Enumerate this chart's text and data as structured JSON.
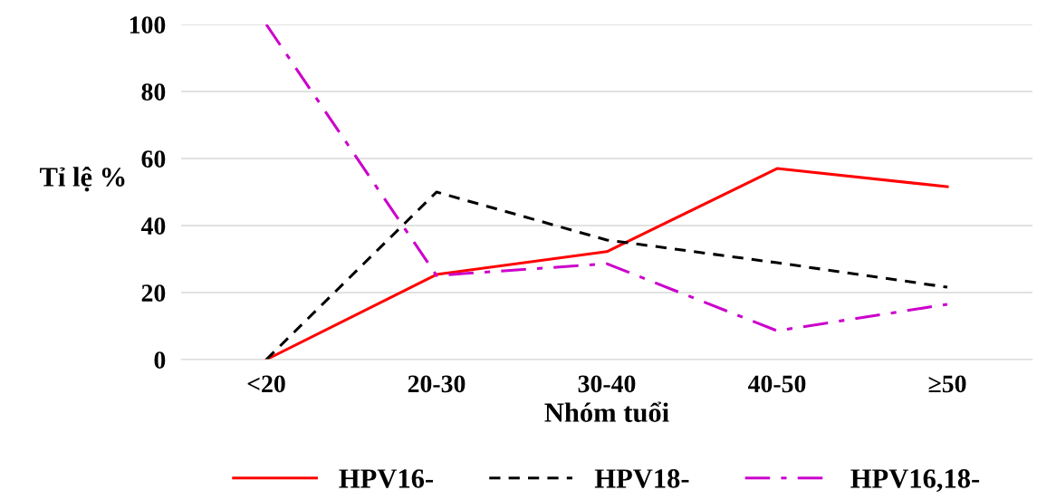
{
  "chart_data": {
    "type": "line",
    "xlabel": "Nhóm tuổi",
    "ylabel": "Tỉ lệ %",
    "categories": [
      "<20",
      "20-30",
      "30-40",
      "40-50",
      "≥50"
    ],
    "series": [
      {
        "name": "HPV16-",
        "color": "#ff0000",
        "line_style": "solid",
        "values": [
          0,
          25.4,
          32.2,
          57.0,
          51.6
        ]
      },
      {
        "name": "HPV18-",
        "color": "#000000",
        "line_style": "dashed",
        "values": [
          0,
          50.0,
          35.7,
          28.9,
          21.6
        ]
      },
      {
        "name": "HPV16,18-",
        "color": "#cc00cc",
        "line_style": "dashdot",
        "values": [
          100,
          25.1,
          28.6,
          8.6,
          16.5
        ]
      }
    ],
    "ylim": [
      0,
      100
    ],
    "yticks": [
      0,
      20,
      40,
      60,
      80,
      100
    ],
    "grid": "y",
    "legend": "bottom",
    "marker": "none"
  }
}
